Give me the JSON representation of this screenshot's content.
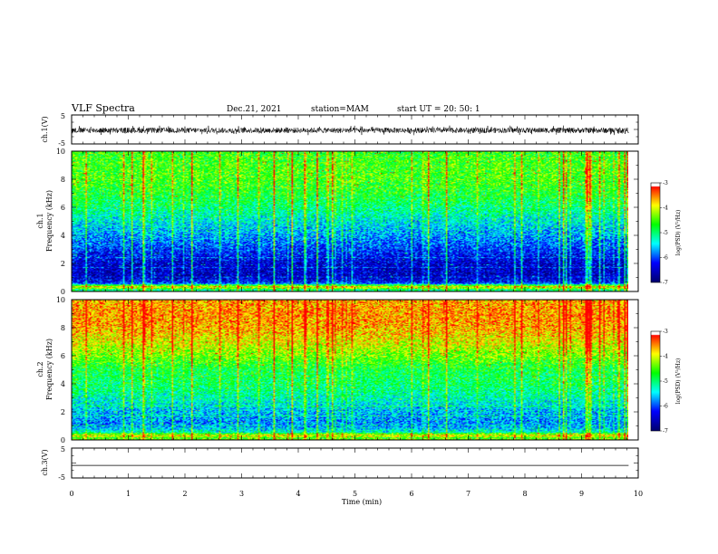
{
  "header": {
    "title": "VLF Spectra",
    "date": "Dec.21, 2021",
    "station": "station=MAM",
    "start_ut": "start  UT =   20: 50: 1"
  },
  "chart_data": [
    {
      "type": "line",
      "name": "waveform-ch1",
      "ylabel": "ch.1(V)",
      "yticks": [
        "5",
        "-5"
      ],
      "ylim": [
        -5,
        5
      ],
      "xlim": [
        0,
        10
      ],
      "data_xlim": [
        0,
        9.83
      ],
      "amplitude_range": [
        -2.0,
        1.4
      ]
    },
    {
      "type": "heatmap",
      "name": "spectrogram-ch1",
      "ylabel_line1": "ch.1",
      "ylabel_line2": "Frequency (kHz)",
      "yticks": [
        "0",
        "2",
        "4",
        "6",
        "8",
        "10"
      ],
      "ylim": [
        0,
        10
      ],
      "xlim": [
        0,
        10
      ],
      "data_xlim": [
        0,
        9.83
      ],
      "z_range": [
        -7,
        -3
      ],
      "colorbar_ticks": [
        "-3",
        "-4",
        "-5",
        "-6",
        "-7"
      ],
      "colorbar_label": "log(PSD) (V²/Hz)",
      "profile_log_psd": [
        {
          "f": 0.0,
          "v": -5.2
        },
        {
          "f": 0.3,
          "v": -4.8
        },
        {
          "f": 0.6,
          "v": -6.3
        },
        {
          "f": 1.0,
          "v": -6.7
        },
        {
          "f": 2.0,
          "v": -6.6
        },
        {
          "f": 3.0,
          "v": -6.2
        },
        {
          "f": 4.0,
          "v": -5.8
        },
        {
          "f": 5.0,
          "v": -5.5
        },
        {
          "f": 6.0,
          "v": -5.1
        },
        {
          "f": 7.0,
          "v": -4.8
        },
        {
          "f": 8.0,
          "v": -4.6
        },
        {
          "f": 9.0,
          "v": -4.6
        },
        {
          "f": 10.0,
          "v": -4.7
        }
      ]
    },
    {
      "type": "heatmap",
      "name": "spectrogram-ch2",
      "ylabel_line1": "ch.2",
      "ylabel_line2": "Frequency (kHz)",
      "yticks": [
        "0",
        "2",
        "4",
        "6",
        "8",
        "10"
      ],
      "ylim": [
        0,
        10
      ],
      "xlim": [
        0,
        10
      ],
      "data_xlim": [
        0,
        9.83
      ],
      "z_range": [
        -7,
        -3
      ],
      "colorbar_ticks": [
        "-3",
        "-4",
        "-5",
        "-6",
        "-7"
      ],
      "colorbar_label": "log(PSD) (V²/Hz)",
      "profile_log_psd": [
        {
          "f": 0.0,
          "v": -4.4
        },
        {
          "f": 0.5,
          "v": -5.3
        },
        {
          "f": 1.0,
          "v": -5.9
        },
        {
          "f": 2.0,
          "v": -5.7
        },
        {
          "f": 3.0,
          "v": -5.3
        },
        {
          "f": 4.0,
          "v": -5.0
        },
        {
          "f": 5.0,
          "v": -4.9
        },
        {
          "f": 6.0,
          "v": -4.4
        },
        {
          "f": 7.0,
          "v": -4.0
        },
        {
          "f": 8.0,
          "v": -3.7
        },
        {
          "f": 9.0,
          "v": -3.6
        },
        {
          "f": 10.0,
          "v": -3.7
        }
      ]
    },
    {
      "type": "line",
      "name": "waveform-ch3",
      "ylabel": "ch.3(V)",
      "yticks": [
        "5",
        "-5"
      ],
      "ylim": [
        -5,
        5
      ],
      "xlim": [
        0,
        10
      ],
      "data_xlim": [
        0,
        9.83
      ],
      "constant_value": -0.8
    }
  ],
  "xaxis": {
    "label": "Time (min)",
    "ticks": [
      "0",
      "1",
      "2",
      "3",
      "4",
      "5",
      "6",
      "7",
      "8",
      "9",
      "10"
    ]
  },
  "colors": {
    "colormap": [
      "#000070",
      "#0000ff",
      "#00ffff",
      "#00ff00",
      "#ffff00",
      "#ff0000",
      "#ffffff"
    ]
  }
}
